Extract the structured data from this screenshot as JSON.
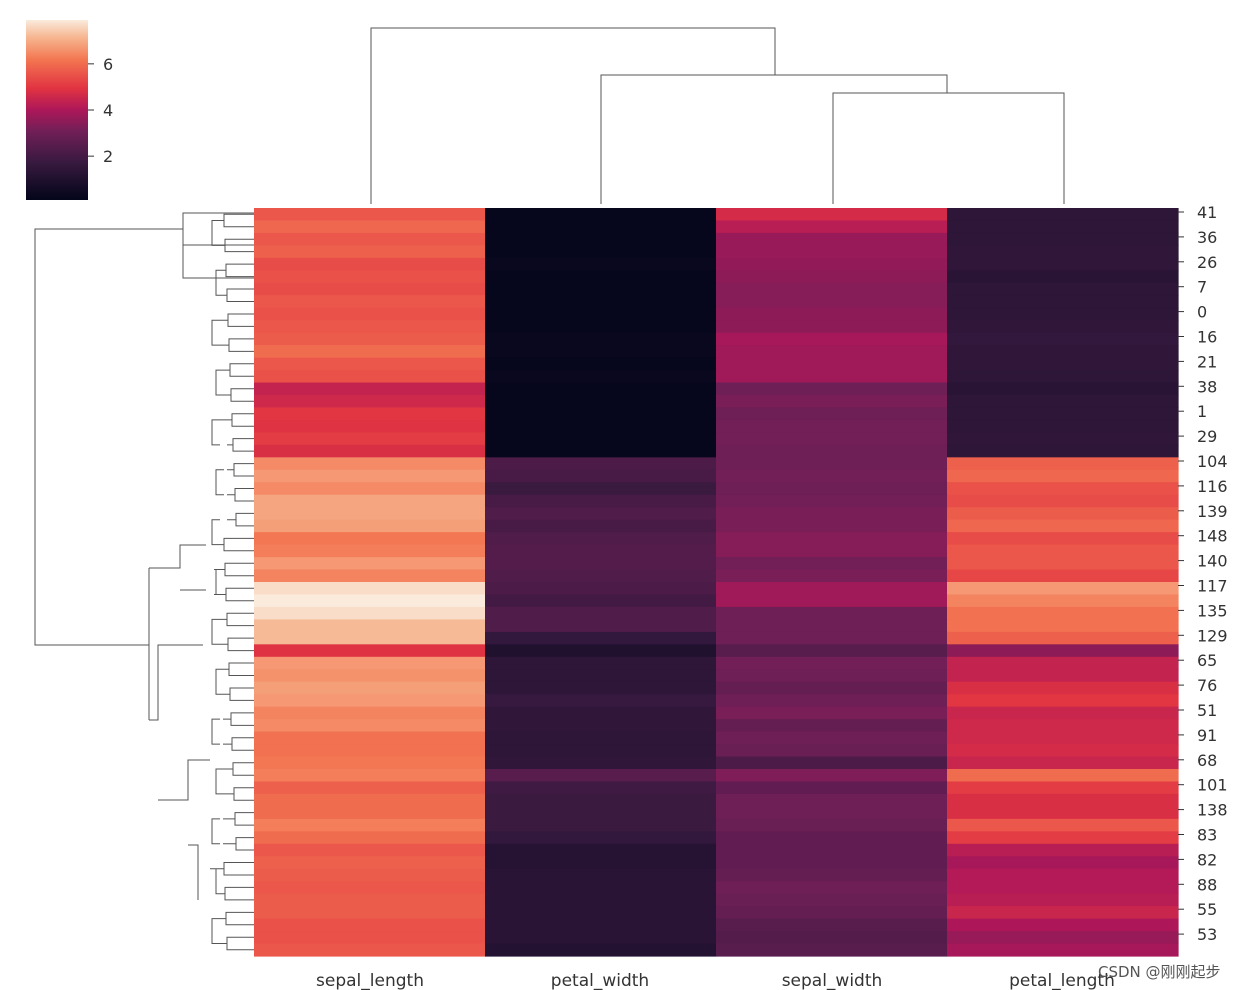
{
  "chart_data": {
    "type": "heatmap",
    "title": "",
    "columns": [
      "sepal_length",
      "petal_width",
      "sepal_width",
      "petal_length"
    ],
    "row_tick_labels": [
      "41",
      "36",
      "26",
      "7",
      "0",
      "16",
      "21",
      "38",
      "1",
      "29",
      "104",
      "116",
      "139",
      "148",
      "140",
      "117",
      "135",
      "129",
      "65",
      "76",
      "51",
      "91",
      "68",
      "101",
      "138",
      "83",
      "82",
      "88",
      "55",
      "53"
    ],
    "rows": [
      {
        "label": "41",
        "values": [
          5.6,
          0.2,
          4.7,
          1.4
        ]
      },
      {
        "label": "",
        "values": [
          5.9,
          0.2,
          4.2,
          1.4
        ]
      },
      {
        "label": "36",
        "values": [
          5.6,
          0.2,
          3.7,
          1.4
        ]
      },
      {
        "label": "",
        "values": [
          5.8,
          0.2,
          3.7,
          1.5
        ]
      },
      {
        "label": "26",
        "values": [
          5.4,
          0.3,
          3.6,
          1.5
        ]
      },
      {
        "label": "",
        "values": [
          5.5,
          0.2,
          3.5,
          1.3
        ]
      },
      {
        "label": "7",
        "values": [
          5.4,
          0.2,
          3.4,
          1.4
        ]
      },
      {
        "label": "",
        "values": [
          5.6,
          0.2,
          3.4,
          1.4
        ]
      },
      {
        "label": "0",
        "values": [
          5.5,
          0.2,
          3.5,
          1.4
        ]
      },
      {
        "label": "",
        "values": [
          5.6,
          0.2,
          3.5,
          1.5
        ]
      },
      {
        "label": "16",
        "values": [
          5.7,
          0.3,
          3.9,
          1.6
        ]
      },
      {
        "label": "",
        "values": [
          6.0,
          0.3,
          3.8,
          1.5
        ]
      },
      {
        "label": "21",
        "values": [
          5.6,
          0.2,
          3.8,
          1.5
        ]
      },
      {
        "label": "",
        "values": [
          5.5,
          0.3,
          3.8,
          1.4
        ]
      },
      {
        "label": "38",
        "values": [
          4.4,
          0.2,
          3.0,
          1.3
        ]
      },
      {
        "label": "",
        "values": [
          4.6,
          0.2,
          3.2,
          1.4
        ]
      },
      {
        "label": "1",
        "values": [
          5.0,
          0.2,
          3.0,
          1.4
        ]
      },
      {
        "label": "",
        "values": [
          4.9,
          0.2,
          3.1,
          1.4
        ]
      },
      {
        "label": "29",
        "values": [
          5.1,
          0.2,
          3.1,
          1.5
        ]
      },
      {
        "label": "",
        "values": [
          4.8,
          0.2,
          3.0,
          1.4
        ]
      },
      {
        "label": "104",
        "values": [
          6.5,
          2.2,
          3.0,
          5.8
        ]
      },
      {
        "label": "",
        "values": [
          6.7,
          2.1,
          3.1,
          5.9
        ]
      },
      {
        "label": "116",
        "values": [
          6.5,
          1.8,
          3.0,
          5.5
        ]
      },
      {
        "label": "",
        "values": [
          6.9,
          2.1,
          3.1,
          5.4
        ]
      },
      {
        "label": "139",
        "values": [
          6.9,
          2.3,
          3.2,
          5.7
        ]
      },
      {
        "label": "",
        "values": [
          6.8,
          2.1,
          3.2,
          5.9
        ]
      },
      {
        "label": "148",
        "values": [
          6.2,
          2.3,
          3.4,
          5.4
        ]
      },
      {
        "label": "",
        "values": [
          6.3,
          2.4,
          3.4,
          5.6
        ]
      },
      {
        "label": "140",
        "values": [
          6.7,
          2.4,
          3.1,
          5.6
        ]
      },
      {
        "label": "",
        "values": [
          6.4,
          2.3,
          3.2,
          5.3
        ]
      },
      {
        "label": "117",
        "values": [
          7.7,
          2.2,
          3.8,
          6.7
        ]
      },
      {
        "label": "",
        "values": [
          7.9,
          2.0,
          3.8,
          6.4
        ]
      },
      {
        "label": "135",
        "values": [
          7.7,
          2.3,
          3.0,
          6.1
        ]
      },
      {
        "label": "",
        "values": [
          7.2,
          2.3,
          3.0,
          6.1
        ]
      },
      {
        "label": "129",
        "values": [
          7.2,
          1.6,
          3.0,
          5.8
        ]
      },
      {
        "label": "",
        "values": [
          4.9,
          1.0,
          2.5,
          3.5
        ]
      },
      {
        "label": "65",
        "values": [
          6.7,
          1.4,
          3.1,
          4.4
        ]
      },
      {
        "label": "",
        "values": [
          6.6,
          1.4,
          3.0,
          4.4
        ]
      },
      {
        "label": "76",
        "values": [
          6.8,
          1.4,
          2.8,
          4.8
        ]
      },
      {
        "label": "",
        "values": [
          6.7,
          1.7,
          3.0,
          5.0
        ]
      },
      {
        "label": "51",
        "values": [
          6.4,
          1.5,
          3.2,
          4.5
        ]
      },
      {
        "label": "",
        "values": [
          6.5,
          1.5,
          2.8,
          4.6
        ]
      },
      {
        "label": "91",
        "values": [
          6.1,
          1.4,
          3.0,
          4.6
        ]
      },
      {
        "label": "",
        "values": [
          6.1,
          1.4,
          2.9,
          4.7
        ]
      },
      {
        "label": "68",
        "values": [
          6.2,
          1.5,
          2.2,
          4.5
        ]
      },
      {
        "label": "",
        "values": [
          6.3,
          2.5,
          3.3,
          6.0
        ]
      },
      {
        "label": "101",
        "values": [
          5.8,
          1.9,
          2.7,
          5.1
        ]
      },
      {
        "label": "",
        "values": [
          6.0,
          1.8,
          3.0,
          4.8
        ]
      },
      {
        "label": "138",
        "values": [
          6.0,
          1.8,
          3.0,
          4.8
        ]
      },
      {
        "label": "",
        "values": [
          6.3,
          1.8,
          2.9,
          5.6
        ]
      },
      {
        "label": "83",
        "values": [
          6.0,
          1.6,
          2.7,
          5.1
        ]
      },
      {
        "label": "",
        "values": [
          5.6,
          1.2,
          2.7,
          4.2
        ]
      },
      {
        "label": "82",
        "values": [
          5.8,
          1.2,
          2.7,
          3.9
        ]
      },
      {
        "label": "",
        "values": [
          5.7,
          1.3,
          2.8,
          4.1
        ]
      },
      {
        "label": "88",
        "values": [
          5.6,
          1.3,
          3.0,
          4.1
        ]
      },
      {
        "label": "",
        "values": [
          5.7,
          1.3,
          2.9,
          4.2
        ]
      },
      {
        "label": "55",
        "values": [
          5.7,
          1.3,
          2.8,
          4.5
        ]
      },
      {
        "label": "",
        "values": [
          5.5,
          1.3,
          2.5,
          4.0
        ]
      },
      {
        "label": "53",
        "values": [
          5.5,
          1.3,
          2.4,
          3.7
        ]
      },
      {
        "label": "",
        "values": [
          5.6,
          1.1,
          2.5,
          3.9
        ]
      }
    ],
    "colorbar": {
      "colormap": "rocket",
      "range": [
        0.1,
        7.9
      ],
      "ticks": [
        2,
        4,
        6
      ],
      "tick_labels": [
        "2",
        "4",
        "6"
      ]
    },
    "column_dendrogram": "sepal_length splits first from {petal_width, {sepal_width, petal_length}}",
    "row_dendrogram": true
  },
  "watermark": "CSDN @刚刚起步"
}
